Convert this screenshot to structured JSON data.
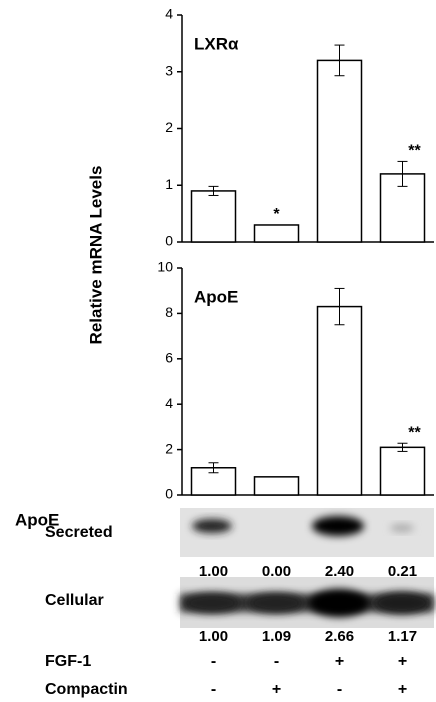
{
  "chart_data": [
    {
      "type": "bar",
      "title": "LXRα",
      "ylabel": "Relative mRNA Levels",
      "categories": [
        null,
        null,
        null,
        null
      ],
      "values": [
        0.9,
        0.3,
        3.2,
        1.2
      ],
      "errors": [
        0.08,
        null,
        0.27,
        0.22
      ],
      "value_annotations": [
        null,
        "*",
        null,
        "**"
      ],
      "color": "#ffffff",
      "ylim": [
        0,
        4
      ],
      "yticks": [
        0,
        1,
        2,
        3,
        4
      ]
    },
    {
      "type": "bar",
      "title": "ApoE",
      "categories": [
        null,
        null,
        null,
        null
      ],
      "values": [
        1.2,
        0.8,
        8.3,
        2.1
      ],
      "errors": [
        0.22,
        null,
        0.8,
        0.18
      ],
      "value_annotations": [
        null,
        null,
        null,
        "**"
      ],
      "color": "#ffffff",
      "ylim": [
        0,
        10
      ],
      "yticks": [
        0,
        2,
        4,
        6,
        8,
        10
      ]
    }
  ],
  "blot": {
    "title": "ApoE",
    "rows": [
      {
        "label": "Secreted",
        "values": [
          "1.00",
          "0.00",
          "2.40",
          "0.21"
        ]
      },
      {
        "label": "Cellular",
        "values": [
          "1.00",
          "1.09",
          "2.66",
          "1.17"
        ]
      }
    ]
  },
  "treatments": [
    {
      "label": "FGF-1",
      "values": [
        "-",
        "-",
        "+",
        "+"
      ]
    },
    {
      "label": "Compactin",
      "values": [
        "-",
        "+",
        "-",
        "+"
      ]
    }
  ]
}
